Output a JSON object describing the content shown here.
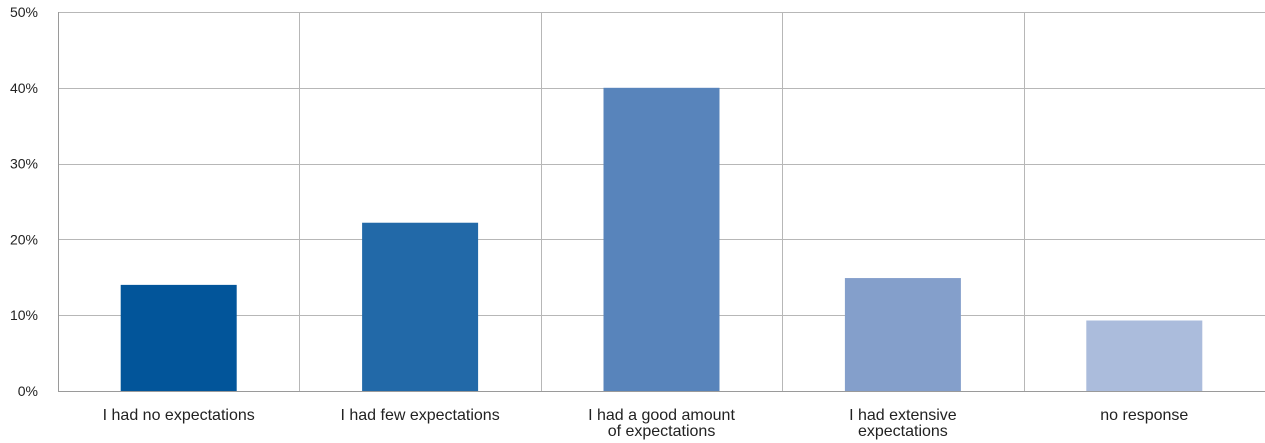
{
  "chart_data": {
    "type": "bar",
    "title": "",
    "xlabel": "",
    "ylabel": "",
    "categories": [
      [
        "I had no expectations"
      ],
      [
        "I had few expectations"
      ],
      [
        "I had a good amount",
        "of expectations"
      ],
      [
        "I had extensive",
        "expectations"
      ],
      [
        "no response"
      ]
    ],
    "values": [
      14,
      22.2,
      40,
      14.9,
      9.3
    ],
    "colors": [
      "#02559a",
      "#2269a8",
      "#5884bb",
      "#849fcb",
      "#abbcdc"
    ],
    "ylim": [
      0,
      50
    ],
    "yticks": [
      0,
      10,
      20,
      30,
      40,
      50
    ],
    "ytick_labels": [
      "0%",
      "10%",
      "20%",
      "30%",
      "40%",
      "50%"
    ],
    "grid": "horizontal and vertical",
    "legend": "none"
  }
}
